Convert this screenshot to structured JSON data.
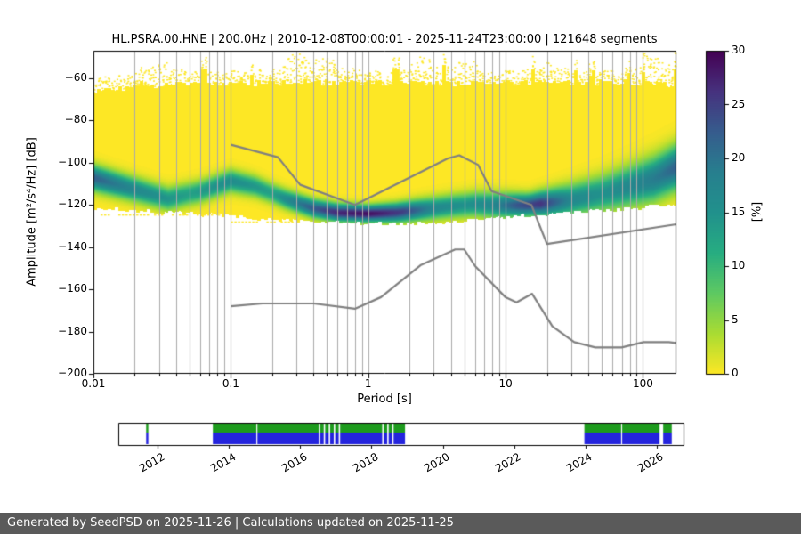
{
  "page": {
    "footer_text": "Generated by SeedPSD on 2025-11-26 | Calculations updated on 2025-11-25",
    "footer_bg": "#5a5a5a",
    "footer_fg": "#ffffff"
  },
  "chart_data": {
    "type": "heatmap",
    "title": "HL.PSRA.00.HNE | 200.0Hz | 2010-12-08T00:00:01 - 2025-11-24T23:00:00 | 121648 segments",
    "xlabel": "Period [s]",
    "ylabel": "Amplitude [m²/s⁴/Hz] [dB]",
    "xscale": "log",
    "xlim": [
      0.01,
      175
    ],
    "ylim": [
      -200,
      -47
    ],
    "x_ticks": {
      "values": [
        0.01,
        0.1,
        1,
        10,
        100
      ],
      "labels": [
        "0.01",
        "0.1",
        "1",
        "10",
        "100"
      ]
    },
    "y_ticks": {
      "values": [
        -60,
        -80,
        -100,
        -120,
        -140,
        -160,
        -180,
        -200
      ],
      "labels": [
        "−60",
        "−80",
        "−100",
        "−120",
        "−140",
        "−160",
        "−180",
        "−200"
      ]
    },
    "colors": {
      "grid": "#aaaaaa",
      "axis": "#000000",
      "noise_model": "#808080",
      "background": "#ffffff",
      "histogram_base": "#fde725"
    },
    "colorbar": {
      "label": "[%]",
      "min": 0,
      "max": 30,
      "ticks": [
        0,
        5,
        10,
        15,
        20,
        25,
        30
      ],
      "tick_labels": [
        "0",
        "5",
        "10",
        "15",
        "20",
        "25",
        "30"
      ],
      "colormap": "viridis_r",
      "viridis_stops": [
        [
          0,
          "#440154"
        ],
        [
          0.125,
          "#46327e"
        ],
        [
          0.25,
          "#365c8d"
        ],
        [
          0.375,
          "#277f8e"
        ],
        [
          0.5,
          "#21918c"
        ],
        [
          0.625,
          "#27ad81"
        ],
        [
          0.75,
          "#5ec962"
        ],
        [
          0.875,
          "#aadc32"
        ],
        [
          1,
          "#fde725"
        ]
      ]
    },
    "ppsd": {
      "seed": 7,
      "top_edge": [
        [
          0.01,
          -66
        ],
        [
          0.03,
          -63.5
        ],
        [
          0.07,
          -62.5
        ],
        [
          0.3,
          -62
        ],
        [
          1,
          -62
        ],
        [
          5,
          -62.5
        ],
        [
          30,
          -62
        ],
        [
          100,
          -62
        ],
        [
          175,
          -63
        ]
      ],
      "bottom_edge": [
        [
          0.01,
          -121
        ],
        [
          0.03,
          -123
        ],
        [
          0.1,
          -125
        ],
        [
          0.3,
          -127.5
        ],
        [
          1,
          -128.5
        ],
        [
          3,
          -128
        ],
        [
          8,
          -126
        ],
        [
          20,
          -124
        ],
        [
          60,
          -122
        ],
        [
          175,
          -119.5
        ]
      ],
      "mode": [
        [
          0.01,
          -107
        ],
        [
          0.02,
          -112.5
        ],
        [
          0.035,
          -117
        ],
        [
          0.06,
          -113.5
        ],
        [
          0.1,
          -108.5
        ],
        [
          0.15,
          -111
        ],
        [
          0.25,
          -117
        ],
        [
          0.4,
          -121.5
        ],
        [
          0.6,
          -123.5
        ],
        [
          1,
          -124
        ],
        [
          1.6,
          -123.5
        ],
        [
          2.5,
          -122
        ],
        [
          4,
          -120.5
        ],
        [
          6,
          -119.5
        ],
        [
          9,
          -120
        ],
        [
          14,
          -120
        ],
        [
          20,
          -119
        ],
        [
          30,
          -117.5
        ],
        [
          50,
          -114.5
        ],
        [
          80,
          -111
        ],
        [
          120,
          -107.5
        ],
        [
          175,
          -102
        ]
      ],
      "peak_pct": [
        [
          0.01,
          22
        ],
        [
          0.02,
          17
        ],
        [
          0.05,
          13
        ],
        [
          0.1,
          16
        ],
        [
          0.2,
          13
        ],
        [
          0.35,
          21
        ],
        [
          0.6,
          27
        ],
        [
          1,
          29
        ],
        [
          1.8,
          25
        ],
        [
          3,
          17
        ],
        [
          5,
          15
        ],
        [
          8,
          17
        ],
        [
          12,
          23
        ],
        [
          18,
          26
        ],
        [
          30,
          17
        ],
        [
          50,
          15
        ],
        [
          100,
          18
        ],
        [
          140,
          20
        ],
        [
          175,
          22
        ]
      ],
      "sigma_db": [
        [
          0.01,
          4
        ],
        [
          0.1,
          3.5
        ],
        [
          0.3,
          3
        ],
        [
          1,
          2.6
        ],
        [
          3,
          3.5
        ],
        [
          8,
          4
        ],
        [
          15,
          3.5
        ],
        [
          30,
          5
        ],
        [
          60,
          6
        ],
        [
          120,
          7
        ],
        [
          175,
          7
        ]
      ],
      "plumes": [
        [
          0.03,
          6
        ],
        [
          0.3,
          12
        ],
        [
          0.5,
          8
        ],
        [
          2.5,
          7
        ],
        [
          5,
          6
        ],
        [
          20,
          4
        ],
        [
          110,
          7
        ],
        [
          160,
          5
        ]
      ],
      "stray_rows": [
        [
          0.01,
          0.09,
          -124.5
        ],
        [
          0.1,
          0.28,
          -127.8
        ]
      ]
    },
    "noise_models": {
      "high": [
        [
          0.1,
          -91.5
        ],
        [
          0.22,
          -97.4
        ],
        [
          0.32,
          -110.5
        ],
        [
          0.8,
          -120
        ],
        [
          3.8,
          -98
        ],
        [
          4.6,
          -96.5
        ],
        [
          6.3,
          -101
        ],
        [
          7.9,
          -113.5
        ],
        [
          15.4,
          -120
        ],
        [
          20,
          -138.5
        ],
        [
          175,
          -129.2
        ]
      ],
      "low": [
        [
          0.1,
          -168
        ],
        [
          0.17,
          -166.7
        ],
        [
          0.4,
          -166.7
        ],
        [
          0.8,
          -169.2
        ],
        [
          1.24,
          -163.7
        ],
        [
          2.4,
          -148.6
        ],
        [
          4.3,
          -141.1
        ],
        [
          5,
          -141.1
        ],
        [
          6,
          -149
        ],
        [
          10,
          -163.8
        ],
        [
          12,
          -166.2
        ],
        [
          15.6,
          -162.1
        ],
        [
          21.9,
          -177.5
        ],
        [
          31.6,
          -185
        ],
        [
          45,
          -187.5
        ],
        [
          70,
          -187.5
        ],
        [
          101,
          -185
        ],
        [
          154,
          -185
        ],
        [
          175,
          -185.4
        ]
      ]
    },
    "timeline": {
      "range": [
        2010.9,
        2026.75
      ],
      "tick_years": [
        2012,
        2014,
        2016,
        2018,
        2020,
        2022,
        2024,
        2026
      ],
      "tick_labels": [
        "2012",
        "2014",
        "2016",
        "2018",
        "2020",
        "2022",
        "2024",
        "2026"
      ],
      "colors": {
        "data": "#2424dd",
        "highlight": "#1d9b1d",
        "border": "#000000"
      },
      "segments": [
        [
          2011.68,
          2011.74
        ],
        [
          2013.55,
          2014.77
        ],
        [
          2014.8,
          2016.52
        ],
        [
          2016.56,
          2016.66
        ],
        [
          2016.7,
          2016.8
        ],
        [
          2016.84,
          2016.94
        ],
        [
          2016.98,
          2017.08
        ],
        [
          2017.12,
          2018.3
        ],
        [
          2018.34,
          2018.44
        ],
        [
          2018.48,
          2018.58
        ],
        [
          2018.62,
          2018.94
        ],
        [
          2023.97,
          2025.0
        ],
        [
          2025.03,
          2026.08
        ],
        [
          2026.18,
          2026.42
        ]
      ]
    }
  }
}
